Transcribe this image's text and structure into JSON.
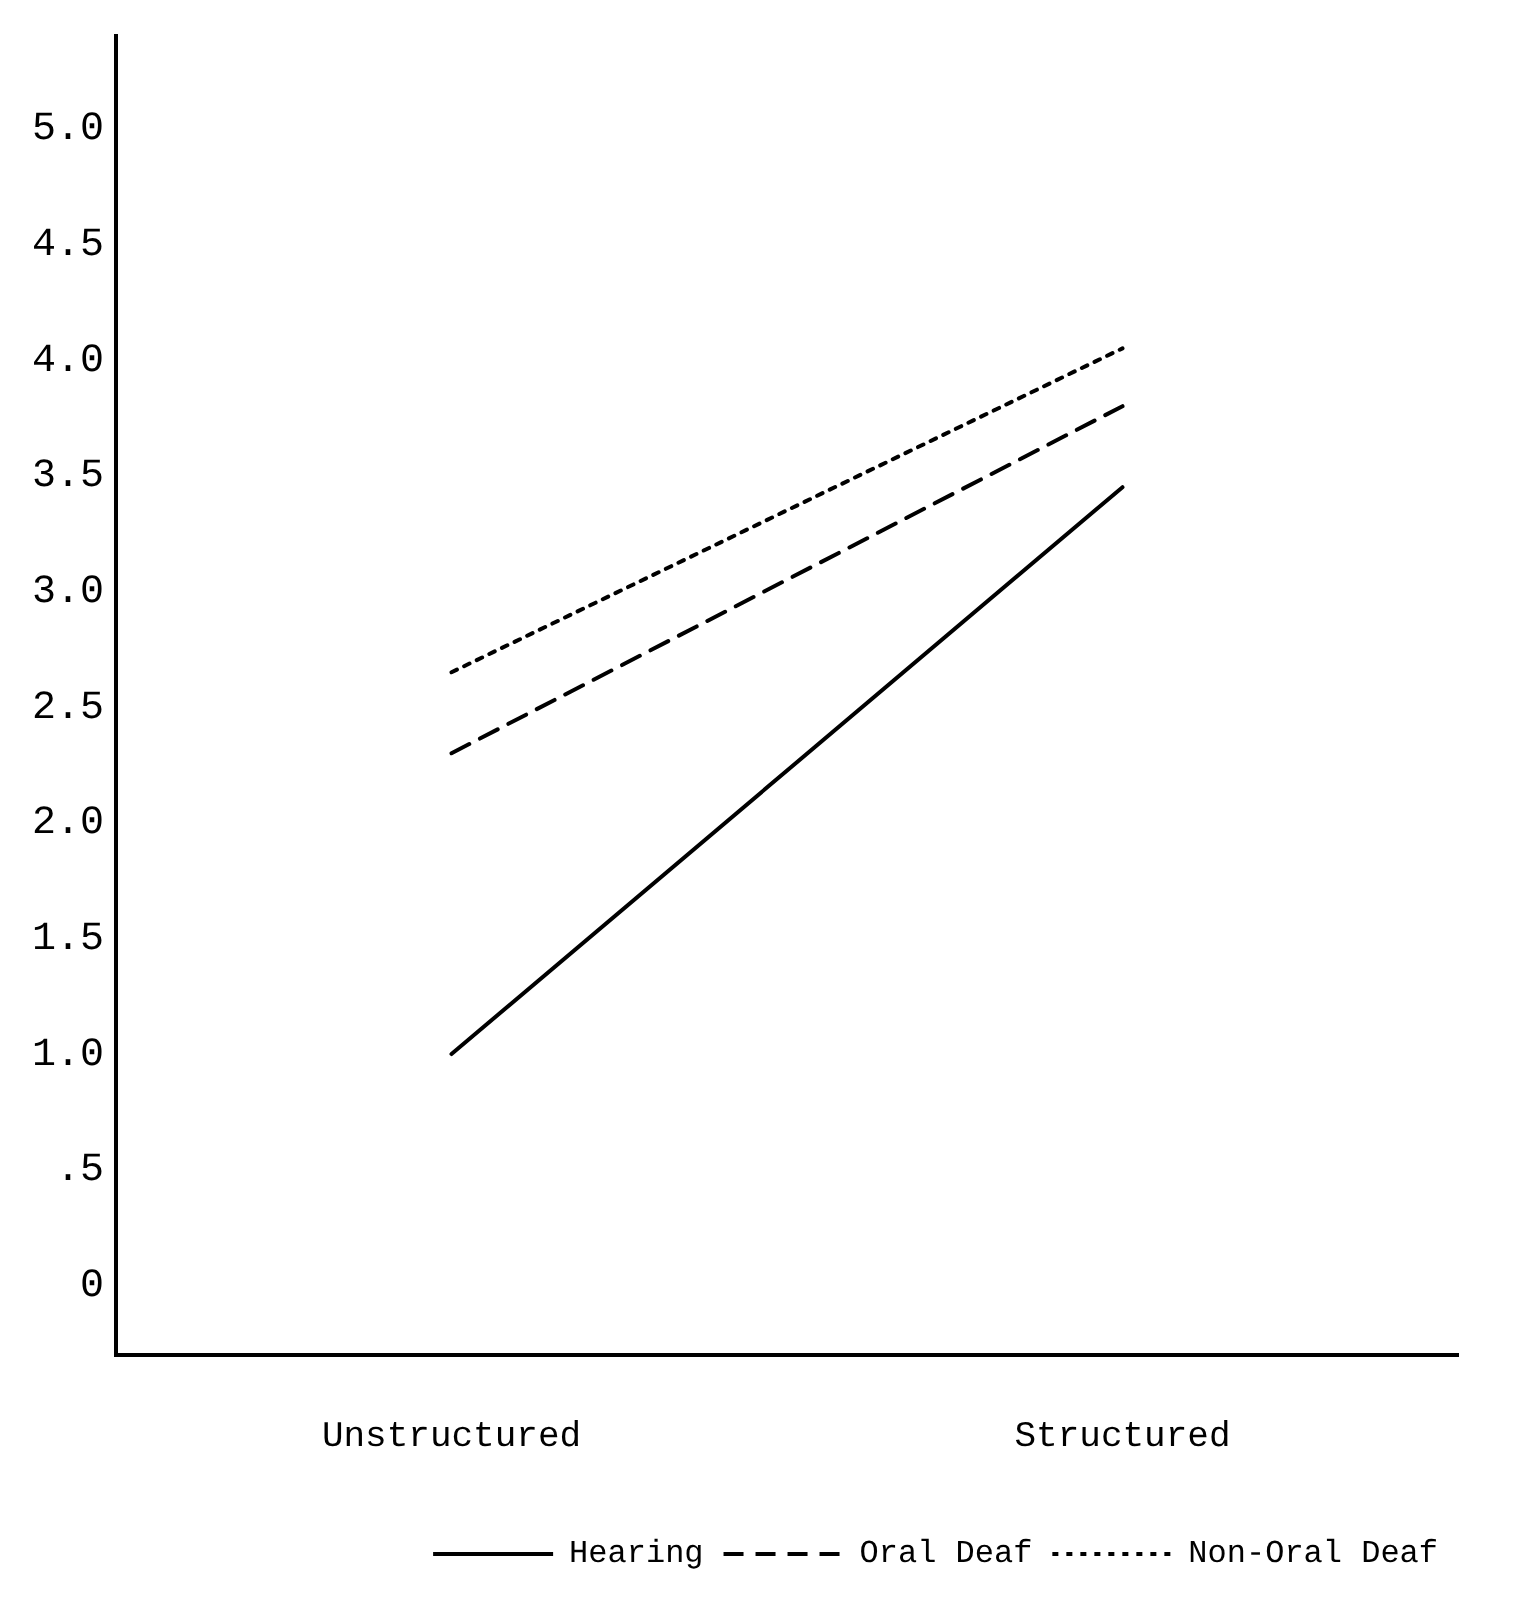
{
  "chart_data": {
    "type": "line",
    "categories": [
      "Unstructured",
      "Structured"
    ],
    "series": [
      {
        "name": "Hearing",
        "color": "#000000",
        "values": [
          1.0,
          3.45
        ],
        "line_style": "solid"
      },
      {
        "name": "Oral Deaf",
        "color": "#000000",
        "values": [
          2.3,
          3.8
        ],
        "line_style": "dashed"
      },
      {
        "name": "Non-Oral Deaf",
        "color": "#000000",
        "values": [
          2.65,
          4.05
        ],
        "line_style": "dotted"
      }
    ],
    "ylim": [
      -0.3,
      5.4
    ],
    "yticks": [
      0,
      {
        "value": 0.5,
        "label": ".5"
      },
      {
        "value": 1,
        "label": "1.0"
      },
      {
        "value": 1.5,
        "label": "1.5"
      },
      {
        "value": 2,
        "label": "2.0"
      },
      {
        "value": 2.5,
        "label": "2.5"
      },
      {
        "value": 3,
        "label": "3.0"
      },
      {
        "value": 3.5,
        "label": "3.5"
      },
      {
        "value": 4,
        "label": "4.0"
      },
      {
        "value": 4.5,
        "label": "4.5"
      },
      {
        "value": 5,
        "label": "5.0"
      }
    ],
    "grid": false,
    "legend": "bottom right",
    "marker": "none"
  }
}
